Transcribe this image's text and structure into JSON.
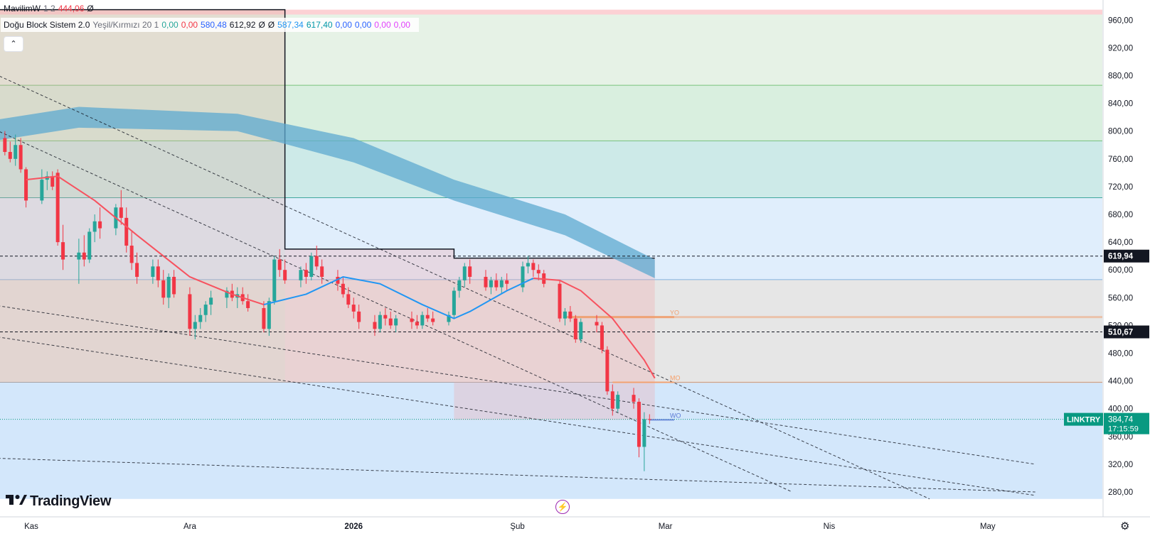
{
  "legend": {
    "symbol_label": "MavilimW",
    "symbol_params": "1 2",
    "symbol_value": "444,06",
    "symbol_flag": "Ø",
    "indicator_name": "Doğu Block Sistem 2.0",
    "indicator_params": "Yeşil/Kırmızı 20 1",
    "values": [
      {
        "text": "0,00",
        "color": "#26a69a"
      },
      {
        "text": "0,00",
        "color": "#f23645"
      },
      {
        "text": "580,48",
        "color": "#2962ff"
      },
      {
        "text": "612,92",
        "color": "#131722"
      },
      {
        "text": "Ø",
        "color": "#131722"
      },
      {
        "text": "Ø",
        "color": "#131722"
      },
      {
        "text": "587,34",
        "color": "#2196f3"
      },
      {
        "text": "617,40",
        "color": "#0097a7"
      },
      {
        "text": "0,00",
        "color": "#2962ff"
      },
      {
        "text": "0,00",
        "color": "#2962ff"
      },
      {
        "text": "0,00",
        "color": "#e040fb"
      },
      {
        "text": "0,00",
        "color": "#e040fb"
      }
    ],
    "collapse_icon": "chevron-up-icon"
  },
  "branding": {
    "logo_text": "TradingView",
    "logo_icon": "tradingview-logo-icon"
  },
  "icons": {
    "flash": "flash-icon",
    "settings": "settings-gear-icon"
  },
  "colors": {
    "up": "#26a69a",
    "down": "#f23645",
    "mavilim_red": "#f7525f",
    "mavilim_blue": "#2196f3",
    "cloud": "#5ea9d0",
    "last_price_bg": "#089981"
  },
  "chart_data": {
    "type": "candlestick",
    "symbol": "LINKTRY",
    "last_price": "384,74",
    "countdown": "17:15:59",
    "ylim": [
      270,
      975
    ],
    "y_ticks": [
      {
        "v": 280,
        "label": "280,00"
      },
      {
        "v": 320,
        "label": "320,00"
      },
      {
        "v": 360,
        "label": "360,00"
      },
      {
        "v": 400,
        "label": "400,00"
      },
      {
        "v": 440,
        "label": "440,00"
      },
      {
        "v": 480,
        "label": "480,00"
      },
      {
        "v": 520,
        "label": "520,00"
      },
      {
        "v": 560,
        "label": "560,00"
      },
      {
        "v": 600,
        "label": "600,00"
      },
      {
        "v": 640,
        "label": "640,00"
      },
      {
        "v": 680,
        "label": "680,00"
      },
      {
        "v": 720,
        "label": "720,00"
      },
      {
        "v": 760,
        "label": "760,00"
      },
      {
        "v": 800,
        "label": "800,00"
      },
      {
        "v": 840,
        "label": "840,00"
      },
      {
        "v": 880,
        "label": "880,00"
      },
      {
        "v": 920,
        "label": "920,00"
      },
      {
        "v": 960,
        "label": "960,00"
      }
    ],
    "x_ticks": [
      {
        "date": "2025-11-01",
        "label": "Kas"
      },
      {
        "date": "2025-12-01",
        "label": "Ara"
      },
      {
        "date": "2026-01-01",
        "label": "2026"
      },
      {
        "date": "2026-02-01",
        "label": "Şub"
      },
      {
        "date": "2026-03-01",
        "label": "Mar"
      },
      {
        "date": "2026-04-01",
        "label": "Nis"
      },
      {
        "date": "2026-05-01",
        "label": "May"
      }
    ],
    "candles": [
      {
        "d": "2025-10-27",
        "o": 790,
        "h": 800,
        "l": 765,
        "c": 770
      },
      {
        "d": "2025-10-28",
        "o": 770,
        "h": 785,
        "l": 755,
        "c": 760
      },
      {
        "d": "2025-10-29",
        "o": 760,
        "h": 795,
        "l": 750,
        "c": 780
      },
      {
        "d": "2025-10-30",
        "o": 780,
        "h": 790,
        "l": 740,
        "c": 745
      },
      {
        "d": "2025-10-31",
        "o": 745,
        "h": 748,
        "l": 690,
        "c": 700
      },
      {
        "d": "2025-11-03",
        "o": 700,
        "h": 745,
        "l": 695,
        "c": 730
      },
      {
        "d": "2025-11-04",
        "o": 730,
        "h": 742,
        "l": 715,
        "c": 735
      },
      {
        "d": "2025-11-05",
        "o": 735,
        "h": 742,
        "l": 715,
        "c": 720
      },
      {
        "d": "2025-11-06",
        "o": 740,
        "h": 745,
        "l": 635,
        "c": 640
      },
      {
        "d": "2025-11-07",
        "o": 640,
        "h": 665,
        "l": 600,
        "c": 615
      },
      {
        "d": "2025-11-10",
        "o": 615,
        "h": 645,
        "l": 580,
        "c": 625
      },
      {
        "d": "2025-11-11",
        "o": 625,
        "h": 650,
        "l": 605,
        "c": 615
      },
      {
        "d": "2025-11-12",
        "o": 615,
        "h": 660,
        "l": 610,
        "c": 655
      },
      {
        "d": "2025-11-13",
        "o": 655,
        "h": 680,
        "l": 640,
        "c": 670
      },
      {
        "d": "2025-11-14",
        "o": 670,
        "h": 690,
        "l": 645,
        "c": 660
      },
      {
        "d": "2025-11-17",
        "o": 660,
        "h": 695,
        "l": 650,
        "c": 690
      },
      {
        "d": "2025-11-18",
        "o": 690,
        "h": 715,
        "l": 665,
        "c": 675
      },
      {
        "d": "2025-11-19",
        "o": 675,
        "h": 690,
        "l": 625,
        "c": 635
      },
      {
        "d": "2025-11-20",
        "o": 635,
        "h": 655,
        "l": 600,
        "c": 610
      },
      {
        "d": "2025-11-21",
        "o": 610,
        "h": 625,
        "l": 580,
        "c": 590
      },
      {
        "d": "2025-11-24",
        "o": 590,
        "h": 615,
        "l": 580,
        "c": 605
      },
      {
        "d": "2025-11-25",
        "o": 605,
        "h": 615,
        "l": 575,
        "c": 585
      },
      {
        "d": "2025-11-26",
        "o": 585,
        "h": 600,
        "l": 550,
        "c": 560
      },
      {
        "d": "2025-11-27",
        "o": 560,
        "h": 595,
        "l": 545,
        "c": 590
      },
      {
        "d": "2025-11-28",
        "o": 590,
        "h": 600,
        "l": 560,
        "c": 565
      },
      {
        "d": "2025-12-01",
        "o": 565,
        "h": 575,
        "l": 505,
        "c": 515
      },
      {
        "d": "2025-12-02",
        "o": 515,
        "h": 535,
        "l": 500,
        "c": 525
      },
      {
        "d": "2025-12-03",
        "o": 525,
        "h": 545,
        "l": 515,
        "c": 535
      },
      {
        "d": "2025-12-04",
        "o": 535,
        "h": 555,
        "l": 525,
        "c": 550
      },
      {
        "d": "2025-12-05",
        "o": 550,
        "h": 570,
        "l": 535,
        "c": 560
      },
      {
        "d": "2025-12-08",
        "o": 560,
        "h": 575,
        "l": 545,
        "c": 570
      },
      {
        "d": "2025-12-09",
        "o": 570,
        "h": 580,
        "l": 555,
        "c": 560
      },
      {
        "d": "2025-12-10",
        "o": 560,
        "h": 575,
        "l": 545,
        "c": 565
      },
      {
        "d": "2025-12-11",
        "o": 565,
        "h": 575,
        "l": 550,
        "c": 555
      },
      {
        "d": "2025-12-12",
        "o": 555,
        "h": 565,
        "l": 540,
        "c": 545
      },
      {
        "d": "2025-12-15",
        "o": 545,
        "h": 555,
        "l": 510,
        "c": 515
      },
      {
        "d": "2025-12-16",
        "o": 515,
        "h": 560,
        "l": 505,
        "c": 555
      },
      {
        "d": "2025-12-17",
        "o": 555,
        "h": 620,
        "l": 550,
        "c": 615
      },
      {
        "d": "2025-12-18",
        "o": 615,
        "h": 630,
        "l": 590,
        "c": 600
      },
      {
        "d": "2025-12-19",
        "o": 600,
        "h": 615,
        "l": 580,
        "c": 585
      },
      {
        "d": "2025-12-22",
        "o": 585,
        "h": 605,
        "l": 575,
        "c": 600
      },
      {
        "d": "2025-12-23",
        "o": 600,
        "h": 610,
        "l": 580,
        "c": 590
      },
      {
        "d": "2025-12-24",
        "o": 590,
        "h": 625,
        "l": 585,
        "c": 620
      },
      {
        "d": "2025-12-25",
        "o": 620,
        "h": 635,
        "l": 600,
        "c": 605
      },
      {
        "d": "2025-12-26",
        "o": 605,
        "h": 615,
        "l": 580,
        "c": 590
      },
      {
        "d": "2025-12-29",
        "o": 590,
        "h": 600,
        "l": 570,
        "c": 580
      },
      {
        "d": "2025-12-30",
        "o": 580,
        "h": 590,
        "l": 560,
        "c": 565
      },
      {
        "d": "2025-12-31",
        "o": 565,
        "h": 575,
        "l": 545,
        "c": 550
      },
      {
        "d": "2026-01-01",
        "o": 550,
        "h": 560,
        "l": 530,
        "c": 540
      },
      {
        "d": "2026-01-02",
        "o": 540,
        "h": 550,
        "l": 515,
        "c": 525
      },
      {
        "d": "2026-01-05",
        "o": 525,
        "h": 535,
        "l": 505,
        "c": 515
      },
      {
        "d": "2026-01-06",
        "o": 515,
        "h": 540,
        "l": 510,
        "c": 535
      },
      {
        "d": "2026-01-07",
        "o": 535,
        "h": 545,
        "l": 520,
        "c": 530
      },
      {
        "d": "2026-01-08",
        "o": 530,
        "h": 540,
        "l": 515,
        "c": 520
      },
      {
        "d": "2026-01-09",
        "o": 520,
        "h": 535,
        "l": 510,
        "c": 530
      },
      {
        "d": "2026-01-12",
        "o": 530,
        "h": 540,
        "l": 515,
        "c": 525
      },
      {
        "d": "2026-01-13",
        "o": 525,
        "h": 535,
        "l": 515,
        "c": 520
      },
      {
        "d": "2026-01-14",
        "o": 520,
        "h": 540,
        "l": 515,
        "c": 535
      },
      {
        "d": "2026-01-15",
        "o": 535,
        "h": 545,
        "l": 525,
        "c": 530
      },
      {
        "d": "2026-01-16",
        "o": 530,
        "h": 540,
        "l": 520,
        "c": 525
      },
      {
        "d": "2026-01-19",
        "o": 525,
        "h": 540,
        "l": 520,
        "c": 535
      },
      {
        "d": "2026-01-20",
        "o": 535,
        "h": 575,
        "l": 530,
        "c": 570
      },
      {
        "d": "2026-01-21",
        "o": 570,
        "h": 590,
        "l": 560,
        "c": 585
      },
      {
        "d": "2026-01-22",
        "o": 585,
        "h": 610,
        "l": 575,
        "c": 605
      },
      {
        "d": "2026-01-23",
        "o": 605,
        "h": 615,
        "l": 580,
        "c": 590
      },
      {
        "d": "2026-01-26",
        "o": 590,
        "h": 600,
        "l": 570,
        "c": 575
      },
      {
        "d": "2026-01-27",
        "o": 575,
        "h": 590,
        "l": 565,
        "c": 585
      },
      {
        "d": "2026-01-28",
        "o": 585,
        "h": 595,
        "l": 570,
        "c": 575
      },
      {
        "d": "2026-01-29",
        "o": 575,
        "h": 590,
        "l": 565,
        "c": 585
      },
      {
        "d": "2026-01-30",
        "o": 585,
        "h": 595,
        "l": 570,
        "c": 580
      },
      {
        "d": "2026-02-02",
        "o": 575,
        "h": 612,
        "l": 568,
        "c": 605
      },
      {
        "d": "2026-02-03",
        "o": 605,
        "h": 620,
        "l": 595,
        "c": 610
      },
      {
        "d": "2026-02-04",
        "o": 610,
        "h": 615,
        "l": 590,
        "c": 600
      },
      {
        "d": "2026-02-05",
        "o": 600,
        "h": 608,
        "l": 585,
        "c": 595
      },
      {
        "d": "2026-02-06",
        "o": 595,
        "h": 600,
        "l": 575,
        "c": 580
      },
      {
        "d": "2026-02-09",
        "o": 580,
        "h": 585,
        "l": 525,
        "c": 530
      },
      {
        "d": "2026-02-10",
        "o": 530,
        "h": 545,
        "l": 520,
        "c": 540
      },
      {
        "d": "2026-02-11",
        "o": 540,
        "h": 548,
        "l": 525,
        "c": 530
      },
      {
        "d": "2026-02-12",
        "o": 530,
        "h": 535,
        "l": 495,
        "c": 500
      },
      {
        "d": "2026-02-13",
        "o": 500,
        "h": 530,
        "l": 495,
        "c": 525
      },
      {
        "d": "2026-02-16",
        "o": 525,
        "h": 535,
        "l": 510,
        "c": 520
      },
      {
        "d": "2026-02-17",
        "o": 520,
        "h": 525,
        "l": 480,
        "c": 485
      },
      {
        "d": "2026-02-18",
        "o": 485,
        "h": 490,
        "l": 420,
        "c": 425
      },
      {
        "d": "2026-02-19",
        "o": 425,
        "h": 435,
        "l": 390,
        "c": 400
      },
      {
        "d": "2026-02-20",
        "o": 400,
        "h": 425,
        "l": 395,
        "c": 420
      },
      {
        "d": "2026-02-23",
        "o": 420,
        "h": 430,
        "l": 400,
        "c": 410
      },
      {
        "d": "2026-02-24",
        "o": 410,
        "h": 415,
        "l": 330,
        "c": 345
      },
      {
        "d": "2026-02-25",
        "o": 345,
        "h": 395,
        "l": 310,
        "c": 385
      },
      {
        "d": "2026-02-26",
        "o": 385,
        "h": 392,
        "l": 378,
        "c": 384.74
      }
    ],
    "mavilim_segments": [
      {
        "color": "red",
        "points": [
          [
            730,
            "2025-10-31"
          ],
          [
            735,
            "2025-11-06"
          ],
          [
            700,
            "2025-11-13"
          ],
          [
            650,
            "2025-11-21"
          ],
          [
            590,
            "2025-12-01"
          ],
          [
            565,
            "2025-12-09"
          ],
          [
            550,
            "2025-12-15"
          ]
        ]
      },
      {
        "color": "blue",
        "points": [
          [
            550,
            "2025-12-15"
          ],
          [
            565,
            "2025-12-23"
          ],
          [
            590,
            "2025-12-30"
          ],
          [
            580,
            "2026-01-06"
          ],
          [
            550,
            "2026-01-14"
          ],
          [
            530,
            "2026-01-20"
          ],
          [
            540,
            "2026-01-23"
          ],
          [
            570,
            "2026-01-30"
          ],
          [
            588,
            "2026-02-04"
          ]
        ]
      },
      {
        "color": "red",
        "points": [
          [
            588,
            "2026-02-04"
          ],
          [
            585,
            "2026-02-09"
          ],
          [
            570,
            "2026-02-13"
          ],
          [
            530,
            "2026-02-19"
          ],
          [
            470,
            "2026-02-25"
          ],
          [
            444,
            "2026-02-27"
          ]
        ]
      }
    ],
    "cloud": {
      "upper": [
        [
          810,
          "2025-10-20"
        ],
        [
          835,
          "2025-11-10"
        ],
        [
          825,
          "2025-12-10"
        ],
        [
          790,
          "2026-01-01"
        ],
        [
          730,
          "2026-01-20"
        ],
        [
          680,
          "2026-02-10"
        ],
        [
          615,
          "2026-02-27"
        ]
      ],
      "lower": [
        [
          780,
          "2025-10-20"
        ],
        [
          805,
          "2025-11-10"
        ],
        [
          800,
          "2025-12-10"
        ],
        [
          755,
          "2026-01-01"
        ],
        [
          700,
          "2026-01-20"
        ],
        [
          650,
          "2026-02-10"
        ],
        [
          588,
          "2026-02-27"
        ]
      ]
    },
    "horizontal_lines": [
      {
        "value": 619.94,
        "label": "619,94",
        "style": "dashed"
      },
      {
        "value": 510.67,
        "label": "510,67",
        "style": "dashed"
      },
      {
        "value": 384.74,
        "style": "dotted-green"
      }
    ],
    "levels": [
      {
        "value": 532,
        "label": "YO",
        "color": "#f0a070"
      },
      {
        "value": 438,
        "label": "MO",
        "color": "#f7a06a"
      },
      {
        "value": 384,
        "label": "WO",
        "color": "#5b7bd5"
      }
    ],
    "zones": [
      {
        "from": 968,
        "to": 975,
        "color": "#fcd1d4"
      },
      {
        "from": 866,
        "to": 968,
        "color": "#e6f2e6"
      },
      {
        "from": 786,
        "to": 866,
        "color": "#d9efdf"
      },
      {
        "from": 704,
        "to": 786,
        "color": "#cdeae8"
      },
      {
        "from": 586,
        "to": 704,
        "color": "#e0eefc"
      },
      {
        "from": 438,
        "to": 586,
        "color": "#e6e6e6"
      },
      {
        "from": 270,
        "to": 438,
        "color": "#d3e7fb"
      }
    ],
    "zone_lines": [
      866,
      786,
      704,
      586,
      438
    ]
  }
}
